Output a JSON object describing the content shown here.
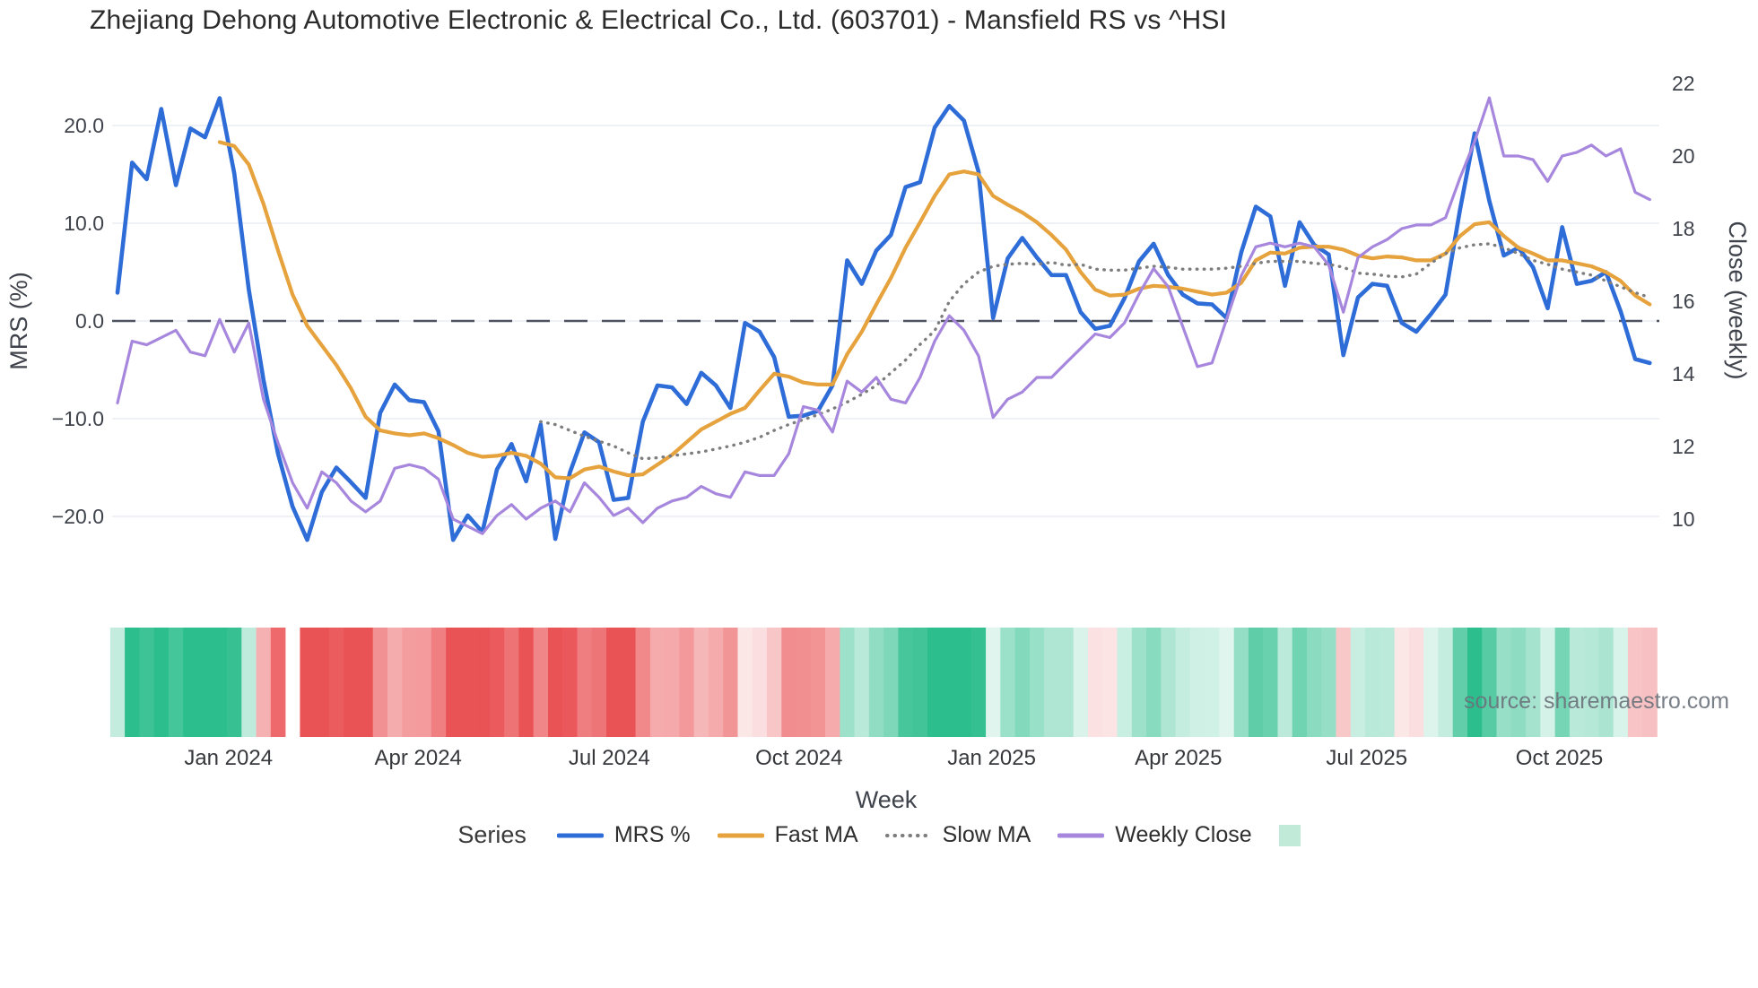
{
  "title": "Zhejiang Dehong Automotive Electronic & Electrical Co., Ltd. (603701) - Mansfield RS vs ^HSI",
  "source_watermark": "source: sharemaestro.com",
  "legend": {
    "title": "Series",
    "heatmap_swatch_color": "#c2ead9"
  },
  "chart_data": {
    "type": "line",
    "title": "Zhejiang Dehong Automotive Electronic & Electrical Co., Ltd. (603701) - Mansfield RS vs ^HSI",
    "x_axis": {
      "label": "Week",
      "ticks": [
        {
          "label": "Jan 2024",
          "week": 7.6
        },
        {
          "label": "Apr 2024",
          "week": 20.6
        },
        {
          "label": "Jul 2024",
          "week": 33.7
        },
        {
          "label": "Oct 2024",
          "week": 46.7
        },
        {
          "label": "Jan 2025",
          "week": 59.9
        },
        {
          "label": "Apr 2025",
          "week": 72.7
        },
        {
          "label": "Jul 2025",
          "week": 85.6
        },
        {
          "label": "Oct 2025",
          "week": 98.8
        }
      ]
    },
    "y_left": {
      "label": "MRS (%)",
      "ticks": [
        {
          "label": "20.0",
          "value": 20
        },
        {
          "label": "10.0",
          "value": 10
        },
        {
          "label": "0.0",
          "value": 0
        },
        {
          "label": "−10.0",
          "value": -10
        },
        {
          "label": "−20.0",
          "value": -20
        }
      ],
      "zero_line_value": 0
    },
    "y_right": {
      "label": "Close (weekly)",
      "ticks": [
        {
          "label": "22",
          "value": 22
        },
        {
          "label": "20",
          "value": 20
        },
        {
          "label": "18",
          "value": 18
        },
        {
          "label": "16",
          "value": 16
        },
        {
          "label": "14",
          "value": 14
        },
        {
          "label": "12",
          "value": 12
        },
        {
          "label": "10",
          "value": 10
        }
      ]
    },
    "weeks": 106,
    "series": [
      {
        "name": "MRS %",
        "axis": "left",
        "color": "#2e6cd8",
        "style": "solid",
        "width": 4.6,
        "values": [
          2.9,
          16.2,
          14.5,
          21.7,
          13.9,
          19.7,
          18.8,
          22.8,
          15.1,
          3.2,
          -6,
          -13.6,
          -19,
          -22.4,
          -17.5,
          -15,
          -16.5,
          -18.1,
          -9.4,
          -6.5,
          -8.1,
          -8.3,
          -11.3,
          -22.4,
          -19.9,
          -21.6,
          -15.2,
          -12.6,
          -16.4,
          -10.6,
          -22.3,
          -15.5,
          -11.4,
          -12.4,
          -18.3,
          -18.1,
          -10.3,
          -6.6,
          -6.8,
          -8.5,
          -5.3,
          -6.6,
          -8.9,
          -0.2,
          -1.1,
          -3.7,
          -9.8,
          -9.7,
          -9.2,
          -6.6,
          6.2,
          3.8,
          7.2,
          8.8,
          13.7,
          14.2,
          19.8,
          22,
          20.5,
          15.3,
          0.3,
          6.4,
          8.5,
          6.5,
          4.7,
          4.7,
          0.9,
          -0.8,
          -0.5,
          2.3,
          6.1,
          7.9,
          4.7,
          2.7,
          1.8,
          1.7,
          0.3,
          7,
          11.7,
          10.7,
          3.6,
          10.1,
          7.8,
          6.8,
          -3.5,
          2.4,
          3.8,
          3.6,
          -0.2,
          -1.1,
          0.7,
          2.7,
          11.4,
          19.2,
          12.3,
          6.7,
          7.5,
          5.5,
          1.3,
          9.6,
          3.8,
          4.1,
          5,
          1,
          -3.9,
          -4.3
        ]
      },
      {
        "name": "Fast MA",
        "axis": "left",
        "color": "#e6a23c",
        "style": "solid",
        "width": 4.2,
        "values": [
          null,
          null,
          null,
          null,
          null,
          null,
          null,
          18.3,
          17.9,
          16,
          12,
          7.2,
          2.7,
          -0.5,
          -2.5,
          -4.5,
          -6.9,
          -9.8,
          -11.2,
          -11.5,
          -11.7,
          -11.5,
          -12,
          -12.7,
          -13.5,
          -13.9,
          -13.8,
          -13.5,
          -13.8,
          -14.6,
          -16,
          -16.1,
          -15.2,
          -14.9,
          -15.4,
          -15.8,
          -15.7,
          -14.7,
          -13.7,
          -12.4,
          -11.1,
          -10.3,
          -9.5,
          -8.9,
          -7.1,
          -5.4,
          -5.7,
          -6.3,
          -6.5,
          -6.5,
          -3.4,
          -1.1,
          1.7,
          4.4,
          7.5,
          10.1,
          12.8,
          15,
          15.3,
          15,
          12.8,
          11.9,
          11.1,
          10.1,
          8.8,
          7.3,
          5,
          3.2,
          2.6,
          2.7,
          3.3,
          3.6,
          3.5,
          3.3,
          3,
          2.7,
          2.9,
          3.9,
          6.2,
          7,
          6.9,
          7.5,
          7.6,
          7.6,
          7.3,
          6.7,
          6.4,
          6.6,
          6.5,
          6.2,
          6.2,
          6.9,
          8.7,
          9.9,
          10.1,
          8.7,
          7.5,
          6.9,
          6.2,
          6.2,
          5.9,
          5.6,
          5,
          4.1,
          2.6,
          1.7
        ]
      },
      {
        "name": "Slow MA",
        "axis": "left",
        "color": "#7d7d7d",
        "style": "dotted",
        "width": 3.4,
        "values": [
          null,
          null,
          null,
          null,
          null,
          null,
          null,
          null,
          null,
          null,
          null,
          null,
          null,
          null,
          null,
          null,
          null,
          null,
          null,
          null,
          null,
          null,
          null,
          null,
          null,
          null,
          null,
          null,
          null,
          -10.3,
          -10.6,
          -11.2,
          -11.8,
          -12.3,
          -12.8,
          -13.5,
          -14.1,
          -14,
          -13.8,
          -13.6,
          -13.4,
          -13.1,
          -12.8,
          -12.4,
          -11.9,
          -11.2,
          -10.6,
          -10.1,
          -9.6,
          -9,
          -8.3,
          -7.5,
          -6.6,
          -5.3,
          -4,
          -2.4,
          -1,
          2,
          3.8,
          5,
          5.6,
          5.8,
          5.9,
          5.8,
          6,
          5.7,
          5.8,
          5.3,
          5.2,
          5.2,
          5.4,
          5.6,
          5.5,
          5.3,
          5.3,
          5.3,
          5.4,
          5.6,
          5.9,
          6.1,
          6.1,
          6.1,
          5.9,
          5.8,
          5.5,
          4.9,
          4.8,
          4.6,
          4.5,
          4.8,
          5.9,
          6.9,
          7.5,
          7.8,
          7.9,
          7.5,
          6.9,
          6.2,
          5.8,
          5.3,
          5,
          4.7,
          4.1,
          3.5,
          2.9,
          2.4
        ]
      },
      {
        "name": "Weekly Close",
        "axis": "right",
        "color": "#a687dd",
        "style": "solid",
        "width": 3.2,
        "values": [
          13.2,
          14.9,
          14.8,
          15,
          15.2,
          14.6,
          14.5,
          15.5,
          14.6,
          15.4,
          13.3,
          12.1,
          11,
          10.3,
          11.3,
          11,
          10.5,
          10.2,
          10.5,
          11.4,
          11.5,
          11.4,
          11.1,
          10,
          9.8,
          9.6,
          10.1,
          10.4,
          10,
          10.3,
          10.5,
          10.2,
          11,
          10.6,
          10.1,
          10.3,
          9.9,
          10.3,
          10.5,
          10.6,
          10.9,
          10.7,
          10.6,
          11.3,
          11.2,
          11.2,
          11.8,
          13.1,
          13,
          12.4,
          13.8,
          13.5,
          13.9,
          13.3,
          13.2,
          13.9,
          14.9,
          15.6,
          15.2,
          14.5,
          12.8,
          13.3,
          13.5,
          13.9,
          13.9,
          14.3,
          14.7,
          15.1,
          15,
          15.4,
          16.2,
          16.9,
          16.4,
          15.3,
          14.2,
          14.3,
          15.5,
          16.7,
          17.5,
          17.6,
          17.5,
          17.6,
          17.5,
          17,
          15.7,
          17.2,
          17.5,
          17.7,
          18,
          18.1,
          18.1,
          18.3,
          19.4,
          20.4,
          21.6,
          20,
          20,
          19.9,
          19.3,
          20,
          20.1,
          20.3,
          20,
          20.2,
          19,
          18.8
        ]
      }
    ],
    "heatmap": {
      "based_on": "MRS %",
      "positive_color": "#2dbe8d",
      "negative_color": "#ea5356",
      "gap_weeks": [
        12
      ]
    },
    "grid": true,
    "legend_position": "bottom"
  }
}
